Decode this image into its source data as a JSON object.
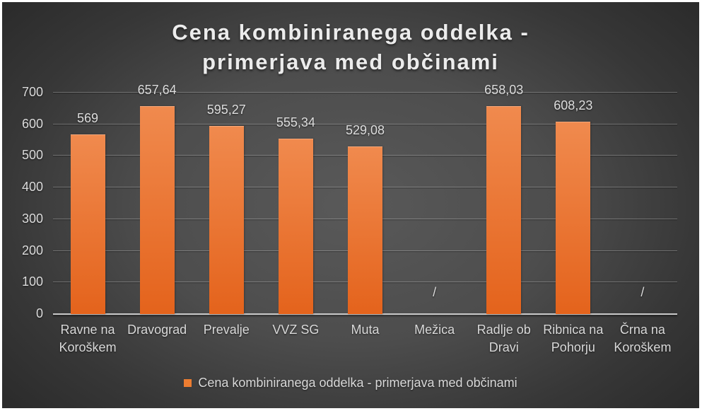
{
  "chart_data": {
    "type": "bar",
    "title": "Cena kombiniranega oddelka - primerjava med občinami",
    "title_lines": [
      "Cena kombiniranega oddelka -",
      "primerjava med občinami"
    ],
    "categories": [
      "Ravne na Koroškem",
      "Dravograd",
      "Prevalje",
      "VVZ SG",
      "Muta",
      "Mežica",
      "Radlje ob Dravi",
      "Ribnica na Pohorju",
      "Črna na Koroškem"
    ],
    "values": [
      569,
      657.64,
      595.27,
      555.34,
      529.08,
      null,
      658.03,
      608.23,
      null
    ],
    "value_labels": [
      "569",
      "657,64",
      "595,27",
      "555,34",
      "529,08",
      "/",
      "658,03",
      "608,23",
      "/"
    ],
    "no_data_marker": "/",
    "y_ticks": [
      0,
      100,
      200,
      300,
      400,
      500,
      600,
      700
    ],
    "ylim": [
      0,
      700
    ],
    "grid": true,
    "xlabel": "",
    "ylabel": "",
    "legend": {
      "label": "Cena kombiniranega oddelka - primerjava med občinami",
      "position": "bottom"
    }
  },
  "colors": {
    "bar_top": "#F08A4E",
    "bar_bottom": "#E4631C",
    "legend_marker": "#ED7D31",
    "axis_text": "#D9D9D9",
    "title_text": "#ECECEC"
  }
}
